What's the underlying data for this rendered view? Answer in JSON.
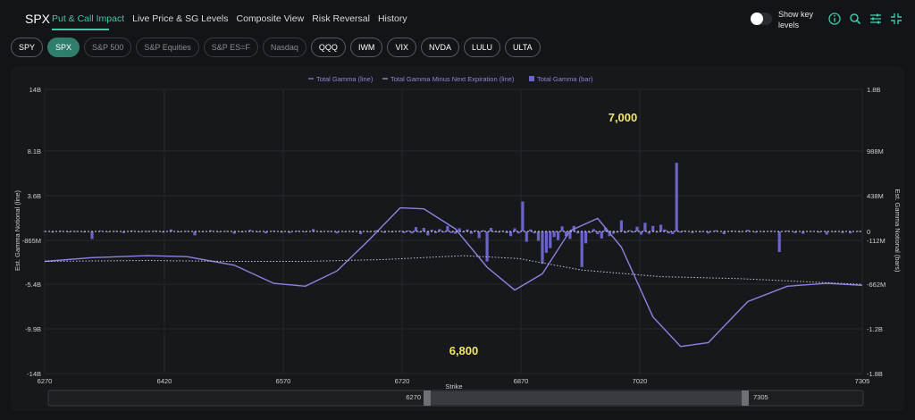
{
  "header": {
    "symbol": "SPX",
    "tabs": [
      {
        "label": "Put & Call Impact",
        "active": true
      },
      {
        "label": "Live Price & SG Levels"
      },
      {
        "label": "Composite View"
      },
      {
        "label": "Risk Reversal"
      },
      {
        "label": "History"
      }
    ],
    "show_key_levels": "Show key levels",
    "show_key_levels_on": false,
    "icons": [
      "info-icon",
      "search-icon",
      "sliders-icon",
      "collapse-icon"
    ]
  },
  "chips": [
    {
      "label": "SPY",
      "state": "normal"
    },
    {
      "label": "SPX",
      "state": "active"
    },
    {
      "label": "S&P 500",
      "state": "muted"
    },
    {
      "label": "S&P Equities",
      "state": "muted"
    },
    {
      "label": "S&P ES=F",
      "state": "muted"
    },
    {
      "label": "Nasdaq",
      "state": "muted"
    },
    {
      "label": "QQQ",
      "state": "normal"
    },
    {
      "label": "IWM",
      "state": "normal"
    },
    {
      "label": "VIX",
      "state": "normal"
    },
    {
      "label": "NVDA",
      "state": "normal"
    },
    {
      "label": "LULU",
      "state": "normal"
    },
    {
      "label": "ULTA",
      "state": "normal"
    }
  ],
  "slider": {
    "start_label": "6270",
    "end_label": "7305"
  },
  "chart_data": {
    "type": "bar",
    "legend": [
      "Total Gamma (line)",
      "Total Gamma Minus Next Expiration (line)",
      "Total Gamma (bar)"
    ],
    "legend_position": "top-center",
    "xlabel": "Strike",
    "ylabel_left": "Est. Gamma Notional (line)",
    "ylabel_right": "Est. Gamma Notional (bars)",
    "xlim": [
      6270,
      7305
    ],
    "x_ticks": [
      "6270",
      "6420",
      "6570",
      "6720",
      "6870",
      "7020",
      "7305"
    ],
    "y_left_ticks": [
      "14B",
      "8.1B",
      "3.6B",
      "-865M",
      "-5.4B",
      "-9.9B",
      "-14B"
    ],
    "y_right_ticks": [
      "1.8B",
      "988M",
      "438M",
      "0",
      "-112M",
      "-662M",
      "-1.2B",
      "-1.8B"
    ],
    "grid": true,
    "annotations": [
      {
        "text": "7,000",
        "x": 7000
      },
      {
        "text": "6,800",
        "x": 6800
      }
    ],
    "colors": {
      "bar": "#6a64c8",
      "line": "#8a84e0",
      "dotted": "#c4c4d8",
      "annotation": "#f1e66a"
    },
    "bars_strikes": [
      6270,
      6280,
      6290,
      6300,
      6310,
      6320,
      6330,
      6340,
      6350,
      6360,
      6370,
      6380,
      6390,
      6400,
      6410,
      6420,
      6430,
      6440,
      6450,
      6460,
      6470,
      6480,
      6490,
      6500,
      6510,
      6520,
      6530,
      6540,
      6550,
      6560,
      6570,
      6580,
      6590,
      6600,
      6610,
      6620,
      6630,
      6640,
      6650,
      6660,
      6670,
      6680,
      6690,
      6700,
      6710,
      6720,
      6725,
      6730,
      6735,
      6740,
      6745,
      6750,
      6755,
      6760,
      6765,
      6770,
      6775,
      6780,
      6785,
      6790,
      6795,
      6800,
      6805,
      6810,
      6815,
      6820,
      6825,
      6830,
      6835,
      6840,
      6845,
      6850,
      6855,
      6860,
      6865,
      6870,
      6875,
      6880,
      6885,
      6890,
      6895,
      6900,
      6905,
      6910,
      6915,
      6920,
      6925,
      6930,
      6935,
      6940,
      6945,
      6950,
      6955,
      6960,
      6965,
      6970,
      6975,
      6980,
      6985,
      6990,
      6995,
      7000,
      7005,
      7010,
      7015,
      7020,
      7025,
      7030,
      7035,
      7040,
      7045,
      7050,
      7055,
      7060,
      7065,
      7070,
      7075,
      7080,
      7090,
      7100,
      7110,
      7120,
      7130,
      7140,
      7150,
      7160,
      7170,
      7180,
      7190,
      7200,
      7210,
      7220,
      7230,
      7240,
      7250,
      7260,
      7270,
      7280,
      7290,
      7300
    ],
    "bars_values_M": [
      5,
      -15,
      8,
      -10,
      5,
      -12,
      -95,
      10,
      -8,
      6,
      -20,
      12,
      -8,
      5,
      10,
      -15,
      25,
      -10,
      6,
      -50,
      -8,
      15,
      -8,
      6,
      -30,
      -12,
      20,
      -10,
      -25,
      10,
      -15,
      -20,
      8,
      -10,
      30,
      -10,
      5,
      -25,
      -8,
      -10,
      -35,
      -8,
      15,
      -18,
      -12,
      8,
      -20,
      10,
      -25,
      55,
      -15,
      45,
      -50,
      20,
      -22,
      30,
      -15,
      70,
      -20,
      -30,
      40,
      -12,
      25,
      -30,
      15,
      -85,
      15,
      -380,
      45,
      -10,
      -15,
      10,
      -22,
      -60,
      40,
      -25,
      380,
      -130,
      25,
      -25,
      -120,
      -410,
      -270,
      -210,
      -70,
      -110,
      65,
      -60,
      -95,
      70,
      -25,
      -450,
      -150,
      -20,
      30,
      -35,
      -90,
      50,
      -60,
      -30,
      -15,
      140,
      -20,
      15,
      -15,
      60,
      -40,
      110,
      -30,
      70,
      -15,
      85,
      25,
      -25,
      -35,
      870,
      -15,
      10,
      -20,
      -10,
      -25,
      15,
      -35,
      10,
      -10,
      20,
      -15,
      -5,
      8,
      -260,
      10,
      -20,
      -30,
      5,
      -15,
      -40,
      -10,
      -20,
      -25,
      5
    ]
  }
}
